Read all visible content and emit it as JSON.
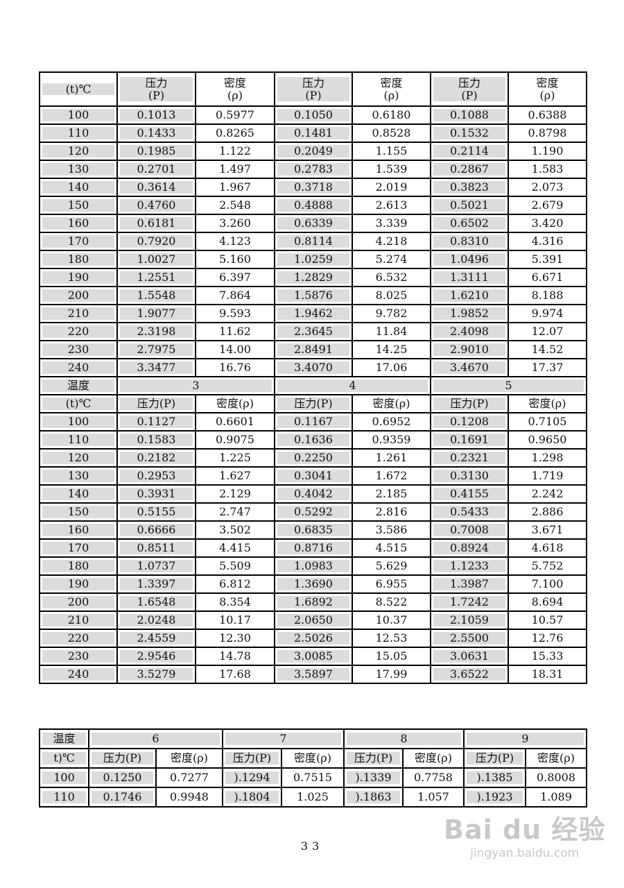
{
  "table1": {
    "header_temp": "(t)℃",
    "header_cols": [
      "压力\n(P)",
      "密度\n(ρ)",
      "压力\n(P)",
      "密度\n(ρ)",
      "压力\n(P)",
      "密度\n(ρ)"
    ],
    "rows": [
      [
        "100",
        "0.1013",
        "0.5977",
        "0.1050",
        "0.6180",
        "0.1088",
        "0.6388"
      ],
      [
        "110",
        "0.1433",
        "0.8265",
        "0.1481",
        "0.8528",
        "0.1532",
        "0.8798"
      ],
      [
        "120",
        "0.1985",
        "1.122",
        "0.2049",
        "1.155",
        "0.2114",
        "1.190"
      ],
      [
        "130",
        "0.2701",
        "1.497",
        "0.2783",
        "1.539",
        "0.2867",
        "1.583"
      ],
      [
        "140",
        "0.3614",
        "1.967",
        "0.3718",
        "2.019",
        "0.3823",
        "2.073"
      ],
      [
        "150",
        "0.4760",
        "2.548",
        "0.4888",
        "2.613",
        "0.5021",
        "2.679"
      ],
      [
        "160",
        "0.6181",
        "3.260",
        "0.6339",
        "3.339",
        "0.6502",
        "3.420"
      ],
      [
        "170",
        "0.7920",
        "4.123",
        "0.8114",
        "4.218",
        "0.8310",
        "4.316"
      ],
      [
        "180",
        "1.0027",
        "5.160",
        "1.0259",
        "5.274",
        "1.0496",
        "5.391"
      ],
      [
        "190",
        "1.2551",
        "6.397",
        "1.2829",
        "6.532",
        "1.3111",
        "6.671"
      ],
      [
        "200",
        "1.5548",
        "7.864",
        "1.5876",
        "8.025",
        "1.6210",
        "8.188"
      ],
      [
        "210",
        "1.9077",
        "9.593",
        "1.9462",
        "9.782",
        "1.9852",
        "9.974"
      ],
      [
        "220",
        "2.3198",
        "11.62",
        "2.3645",
        "11.84",
        "2.4098",
        "12.07"
      ],
      [
        "230",
        "2.7975",
        "14.00",
        "2.8491",
        "14.25",
        "2.9010",
        "14.52"
      ],
      [
        "240",
        "3.3477",
        "16.76",
        "3.4070",
        "17.06",
        "3.4670",
        "17.37"
      ]
    ],
    "section2": {
      "temp_label_1": "温度",
      "temp_label_2": "(t)℃",
      "groups": [
        "3",
        "4",
        "5"
      ],
      "sub_headers": [
        "压力(P)",
        "密度(ρ)",
        "压力(P)",
        "密度(ρ)",
        "压力(P)",
        "密度(ρ)"
      ],
      "rows": [
        [
          "100",
          "0.1127",
          "0.6601",
          "0.1167",
          "0.6952",
          "0.1208",
          "0.7105"
        ],
        [
          "110",
          "0.1583",
          "0.9075",
          "0.1636",
          "0.9359",
          "0.1691",
          "0.9650"
        ],
        [
          "120",
          "0.2182",
          "1.225",
          "0.2250",
          "1.261",
          "0.2321",
          "1.298"
        ],
        [
          "130",
          "0.2953",
          "1.627",
          "0.3041",
          "1.672",
          "0.3130",
          "1.719"
        ],
        [
          "140",
          "0.3931",
          "2.129",
          "0.4042",
          "2.185",
          "0.4155",
          "2.242"
        ],
        [
          "150",
          "0.5155",
          "2.747",
          "0.5292",
          "2.816",
          "0.5433",
          "2.886"
        ],
        [
          "160",
          "0.6666",
          "3.502",
          "0.6835",
          "3.586",
          "0.7008",
          "3.671"
        ],
        [
          "170",
          "0.8511",
          "4.415",
          "0.8716",
          "4.515",
          "0.8924",
          "4.618"
        ],
        [
          "180",
          "1.0737",
          "5.509",
          "1.0983",
          "5.629",
          "1.1233",
          "5.752"
        ],
        [
          "190",
          "1.3397",
          "6.812",
          "1.3690",
          "6.955",
          "1.3987",
          "7.100"
        ],
        [
          "200",
          "1.6548",
          "8.354",
          "1.6892",
          "8.522",
          "1.7242",
          "8.694"
        ],
        [
          "210",
          "2.0248",
          "10.17",
          "2.0650",
          "10.37",
          "2.1059",
          "10.57"
        ],
        [
          "220",
          "2.4559",
          "12.30",
          "2.5026",
          "12.53",
          "2.5500",
          "12.76"
        ],
        [
          "230",
          "2.9546",
          "14.78",
          "3.0085",
          "15.05",
          "3.0631",
          "15.33"
        ],
        [
          "240",
          "3.5279",
          "17.68",
          "3.5897",
          "17.99",
          "3.6522",
          "18.31"
        ]
      ]
    }
  },
  "table2": {
    "temp_label_1": "温度",
    "temp_label_2": "t)℃",
    "groups": [
      "6",
      "7",
      "8",
      "9"
    ],
    "sub_headers": [
      "压力(P)",
      "密度(ρ)",
      "压力(P)",
      "密度(ρ)",
      "压力(P)",
      "密度(ρ)",
      "压力(P)",
      "密度(ρ)"
    ],
    "rows": [
      [
        "100",
        "0.1250",
        "0.7277",
        ").1294",
        "0.7515",
        ").1339",
        "0.7758",
        ").1385",
        "0.8008"
      ],
      [
        "110",
        "0.1746",
        "0.9948",
        ").1804",
        "1.025",
        ").1863",
        "1.057",
        ").1923",
        "1.089"
      ]
    ]
  },
  "page_number": "33",
  "watermark": {
    "logo": "Baidu经验",
    "url": "jingyan.baidu.com"
  }
}
